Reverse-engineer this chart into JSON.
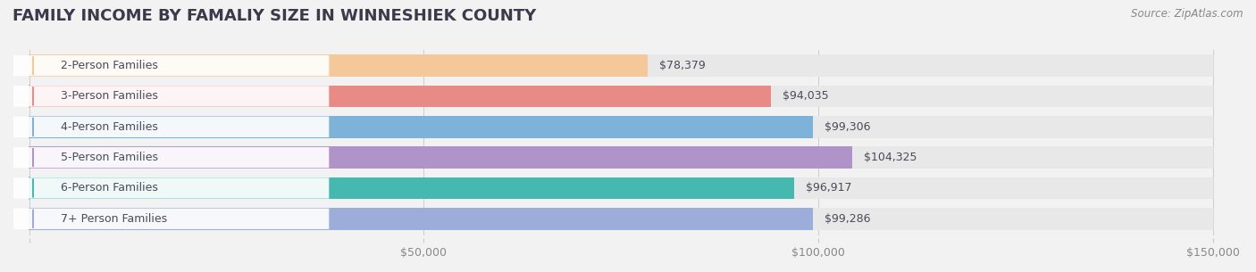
{
  "title": "FAMILY INCOME BY FAMALIY SIZE IN WINNESHIEK COUNTY",
  "source": "Source: ZipAtlas.com",
  "categories": [
    "2-Person Families",
    "3-Person Families",
    "4-Person Families",
    "5-Person Families",
    "6-Person Families",
    "7+ Person Families"
  ],
  "values": [
    78379,
    94035,
    99306,
    104325,
    96917,
    99286
  ],
  "bar_colors": [
    "#f5c89a",
    "#e88a86",
    "#7db3d8",
    "#b093c8",
    "#45b8b0",
    "#9badd8"
  ],
  "label_colors": [
    "#f5c89a",
    "#e88a86",
    "#7db3d8",
    "#b093c8",
    "#45b8b0",
    "#9badd8"
  ],
  "value_labels": [
    "$78,379",
    "$94,035",
    "$99,306",
    "$104,325",
    "$96,917",
    "$99,286"
  ],
  "xlim": [
    0,
    150000
  ],
  "xticks": [
    0,
    50000,
    100000,
    150000
  ],
  "xtick_labels": [
    "",
    "$50,000",
    "$100,000",
    "$150,000"
  ],
  "bg_color": "#f2f2f2",
  "bar_bg_color": "#e8e8e8",
  "title_color": "#3a3a4a",
  "title_fontsize": 13,
  "source_fontsize": 8.5,
  "label_fontsize": 9,
  "value_fontsize": 9,
  "tick_fontsize": 9
}
